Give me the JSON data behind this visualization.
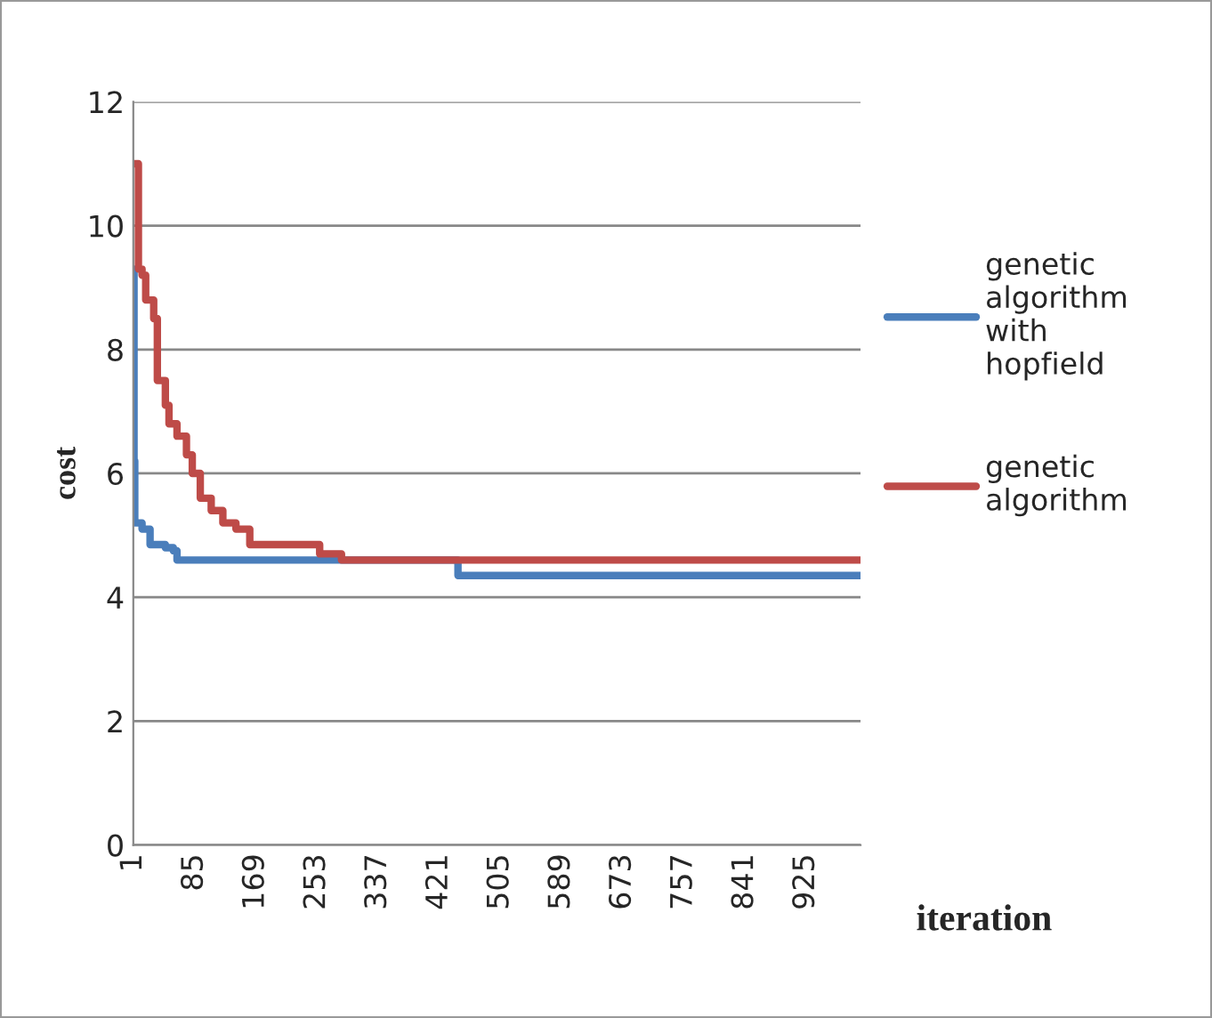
{
  "chart_data": {
    "type": "step",
    "xlabel": "iteration",
    "ylabel": "cost",
    "xlim": [
      1,
      1000
    ],
    "xticks": [
      1,
      85,
      169,
      253,
      337,
      421,
      505,
      589,
      673,
      757,
      841,
      925
    ],
    "ylim": [
      0,
      12
    ],
    "yticks": [
      0,
      2,
      4,
      6,
      8,
      10,
      12
    ],
    "grid": "y",
    "legend": "right",
    "series": [
      {
        "name": "genetic algorithm with hopfield",
        "color": "#4a7ebb",
        "x": [
          1,
          2,
          3,
          13,
          24,
          45,
          56,
          61,
          447,
          1000
        ],
        "values": [
          9.3,
          6.2,
          5.2,
          5.1,
          4.85,
          4.8,
          4.75,
          4.6,
          4.35,
          4.35
        ]
      },
      {
        "name": "genetic algorithm",
        "color": "#be4b48",
        "x": [
          1,
          8,
          13,
          18,
          29,
          34,
          45,
          50,
          61,
          74,
          82,
          93,
          108,
          124,
          142,
          161,
          257,
          287,
          1000
        ],
        "values": [
          11,
          9.3,
          9.2,
          8.8,
          8.5,
          7.5,
          7.1,
          6.8,
          6.6,
          6.3,
          6.0,
          5.6,
          5.4,
          5.2,
          5.1,
          4.85,
          4.7,
          4.6,
          4.6
        ]
      }
    ]
  }
}
